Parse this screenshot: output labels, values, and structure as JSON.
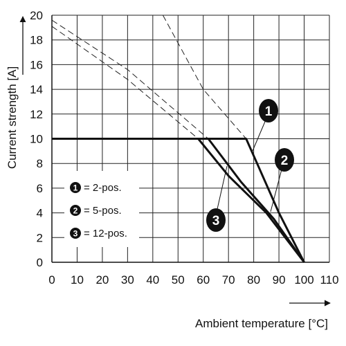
{
  "chart_data": {
    "type": "line",
    "xlabel": "Ambient temperature [°C]",
    "ylabel": "Current strength [A]",
    "xlim": [
      0,
      110
    ],
    "ylim": [
      0,
      20
    ],
    "x_ticks": [
      "0",
      "10",
      "20",
      "30",
      "40",
      "50",
      "60",
      "70",
      "80",
      "90",
      "100",
      "110"
    ],
    "y_ticks": [
      "0",
      "2",
      "4",
      "6",
      "8",
      "10",
      "12",
      "14",
      "16",
      "18",
      "20"
    ],
    "grid": true,
    "legend_position": "left",
    "series": [
      {
        "marker": "1",
        "legend_label": "= 2-pos.",
        "values": [
          [
            0,
            10
          ],
          [
            77,
            10
          ],
          [
            82,
            7.7
          ],
          [
            90,
            4.0
          ],
          [
            100,
            0
          ]
        ],
        "extrapolated": [
          [
            44,
            20
          ],
          [
            60,
            14
          ],
          [
            77,
            10
          ]
        ]
      },
      {
        "marker": "2",
        "legend_label": "= 5-pos.",
        "values": [
          [
            0,
            10
          ],
          [
            62,
            10
          ],
          [
            75,
            6.5
          ],
          [
            88,
            3.5
          ],
          [
            100,
            0
          ]
        ],
        "extrapolated": [
          [
            0,
            19.6
          ],
          [
            30,
            15.6
          ],
          [
            62,
            10
          ]
        ]
      },
      {
        "marker": "3",
        "legend_label": "= 12-pos.",
        "values": [
          [
            0,
            10
          ],
          [
            58,
            10
          ],
          [
            70,
            7.0
          ],
          [
            85,
            4.0
          ],
          [
            100,
            0
          ]
        ],
        "extrapolated": [
          [
            0,
            19.1
          ],
          [
            30,
            14.8
          ],
          [
            58,
            10
          ]
        ]
      }
    ]
  }
}
